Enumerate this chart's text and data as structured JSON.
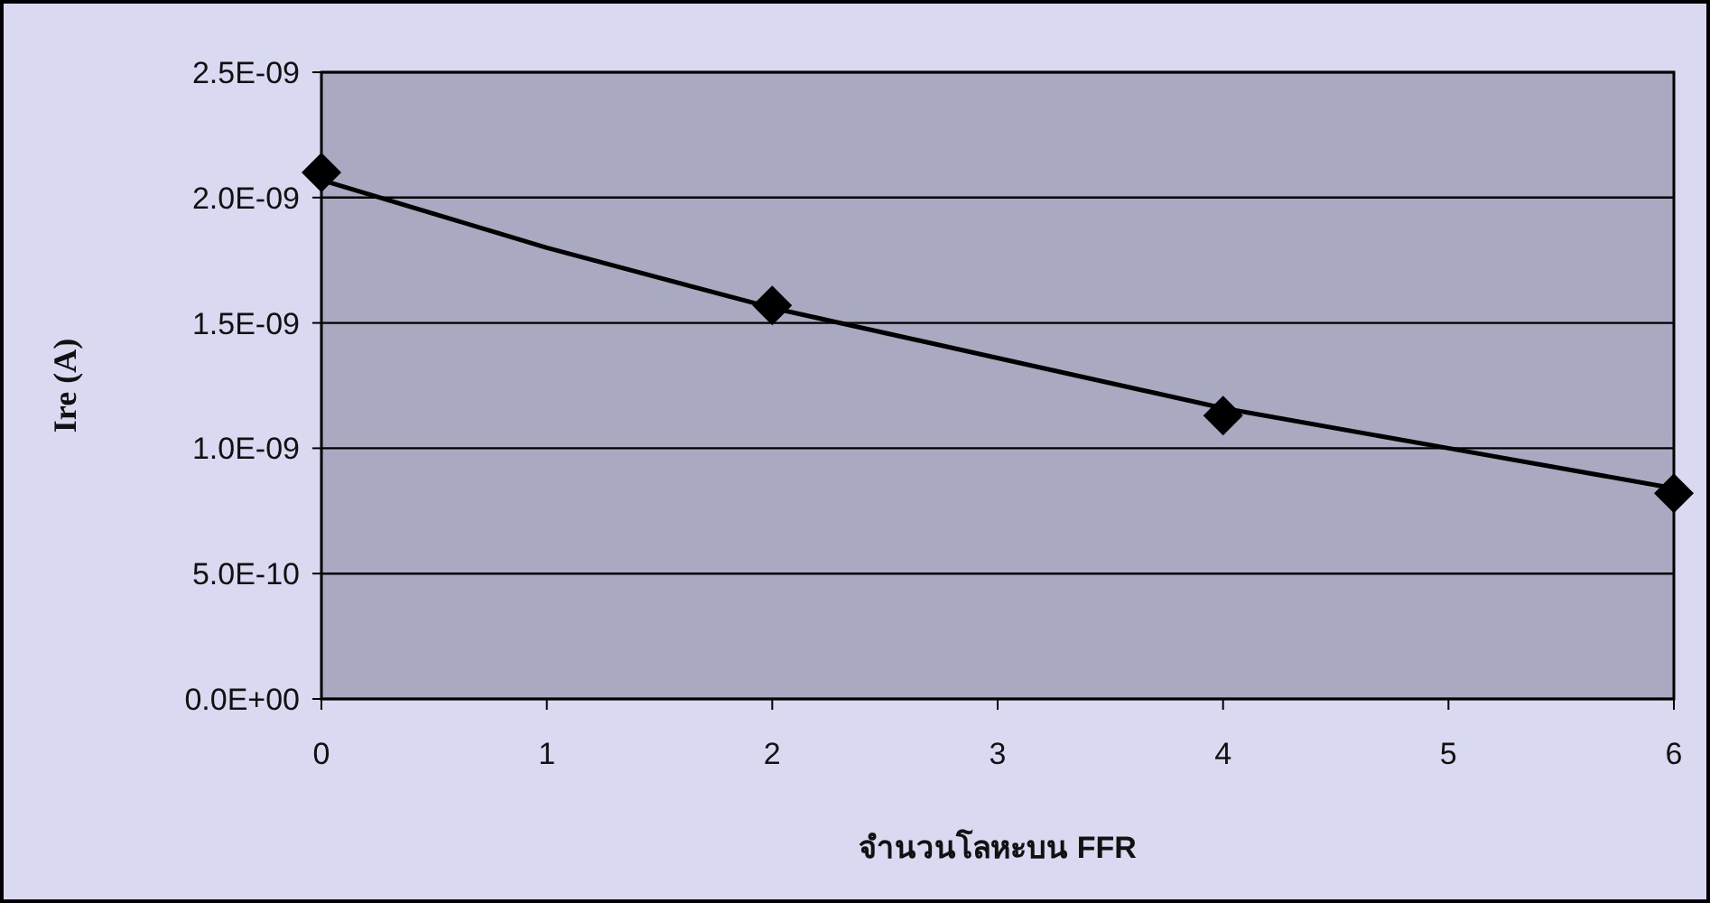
{
  "chart_data": {
    "type": "scatter",
    "xlabel": "จำนวนโลหะบน FFR",
    "ylabel": "Ire (A)",
    "marker": "diamond",
    "grid": "y",
    "series": [
      {
        "color": "#000000",
        "x": [
          0,
          2,
          4,
          6
        ],
        "values": [
          2.1e-09,
          1.57e-09,
          1.13e-09,
          8.2e-10
        ]
      },
      {
        "type": "line",
        "color": "#000000",
        "marker": "none",
        "x": [
          0,
          1,
          2,
          3,
          4,
          5,
          6
        ],
        "values": [
          2.07e-09,
          1.8e-09,
          1.56e-09,
          1.36e-09,
          1.16e-09,
          1e-09,
          8.4e-10
        ]
      }
    ],
    "xlim": [
      0,
      6
    ],
    "xticks": [
      0,
      1,
      2,
      3,
      4,
      5,
      6
    ],
    "ylim": [
      0,
      2.5e-09
    ],
    "yticks": [
      {
        "value": 0,
        "label": "0.0E+00"
      },
      {
        "value": 5e-10,
        "label": "5.0E-10"
      },
      {
        "value": 1e-09,
        "label": "1.0E-09"
      },
      {
        "value": 1.5e-09,
        "label": "1.5E-09"
      },
      {
        "value": 2e-09,
        "label": "2.0E-09"
      },
      {
        "value": 2.5e-09,
        "label": "2.5E-09"
      }
    ]
  }
}
